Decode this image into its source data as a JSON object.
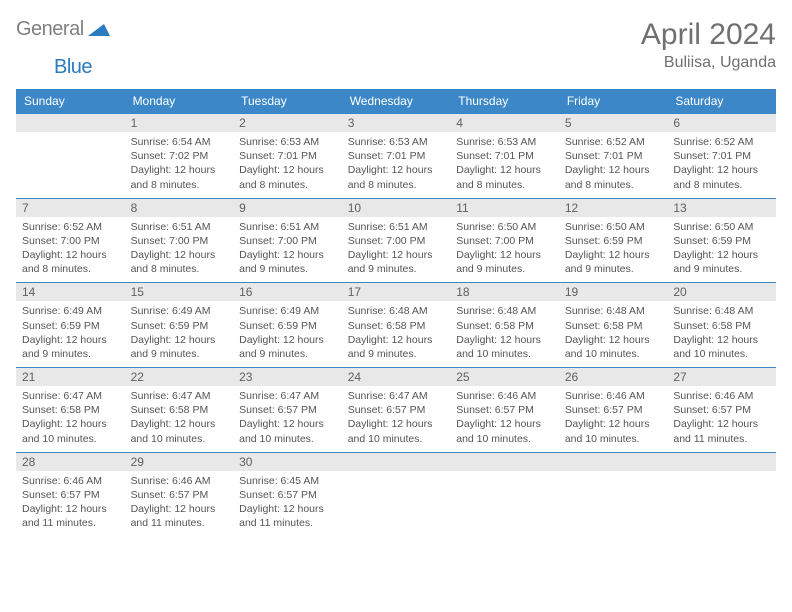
{
  "brand": {
    "name1": "General",
    "name2": "Blue"
  },
  "title": "April 2024",
  "location": "Buliisa, Uganda",
  "colors": {
    "header_bg": "#3b87c8",
    "header_fg": "#ffffff",
    "daynum_bg": "#e8e8e8",
    "text": "#555555",
    "title": "#707070",
    "border": "#3b87c8"
  },
  "weekdays": [
    "Sunday",
    "Monday",
    "Tuesday",
    "Wednesday",
    "Thursday",
    "Friday",
    "Saturday"
  ],
  "rows": [
    [
      {
        "n": "",
        "sr": "",
        "ss": "",
        "dl": ""
      },
      {
        "n": "1",
        "sr": "Sunrise: 6:54 AM",
        "ss": "Sunset: 7:02 PM",
        "dl": "Daylight: 12 hours and 8 minutes."
      },
      {
        "n": "2",
        "sr": "Sunrise: 6:53 AM",
        "ss": "Sunset: 7:01 PM",
        "dl": "Daylight: 12 hours and 8 minutes."
      },
      {
        "n": "3",
        "sr": "Sunrise: 6:53 AM",
        "ss": "Sunset: 7:01 PM",
        "dl": "Daylight: 12 hours and 8 minutes."
      },
      {
        "n": "4",
        "sr": "Sunrise: 6:53 AM",
        "ss": "Sunset: 7:01 PM",
        "dl": "Daylight: 12 hours and 8 minutes."
      },
      {
        "n": "5",
        "sr": "Sunrise: 6:52 AM",
        "ss": "Sunset: 7:01 PM",
        "dl": "Daylight: 12 hours and 8 minutes."
      },
      {
        "n": "6",
        "sr": "Sunrise: 6:52 AM",
        "ss": "Sunset: 7:01 PM",
        "dl": "Daylight: 12 hours and 8 minutes."
      }
    ],
    [
      {
        "n": "7",
        "sr": "Sunrise: 6:52 AM",
        "ss": "Sunset: 7:00 PM",
        "dl": "Daylight: 12 hours and 8 minutes."
      },
      {
        "n": "8",
        "sr": "Sunrise: 6:51 AM",
        "ss": "Sunset: 7:00 PM",
        "dl": "Daylight: 12 hours and 8 minutes."
      },
      {
        "n": "9",
        "sr": "Sunrise: 6:51 AM",
        "ss": "Sunset: 7:00 PM",
        "dl": "Daylight: 12 hours and 9 minutes."
      },
      {
        "n": "10",
        "sr": "Sunrise: 6:51 AM",
        "ss": "Sunset: 7:00 PM",
        "dl": "Daylight: 12 hours and 9 minutes."
      },
      {
        "n": "11",
        "sr": "Sunrise: 6:50 AM",
        "ss": "Sunset: 7:00 PM",
        "dl": "Daylight: 12 hours and 9 minutes."
      },
      {
        "n": "12",
        "sr": "Sunrise: 6:50 AM",
        "ss": "Sunset: 6:59 PM",
        "dl": "Daylight: 12 hours and 9 minutes."
      },
      {
        "n": "13",
        "sr": "Sunrise: 6:50 AM",
        "ss": "Sunset: 6:59 PM",
        "dl": "Daylight: 12 hours and 9 minutes."
      }
    ],
    [
      {
        "n": "14",
        "sr": "Sunrise: 6:49 AM",
        "ss": "Sunset: 6:59 PM",
        "dl": "Daylight: 12 hours and 9 minutes."
      },
      {
        "n": "15",
        "sr": "Sunrise: 6:49 AM",
        "ss": "Sunset: 6:59 PM",
        "dl": "Daylight: 12 hours and 9 minutes."
      },
      {
        "n": "16",
        "sr": "Sunrise: 6:49 AM",
        "ss": "Sunset: 6:59 PM",
        "dl": "Daylight: 12 hours and 9 minutes."
      },
      {
        "n": "17",
        "sr": "Sunrise: 6:48 AM",
        "ss": "Sunset: 6:58 PM",
        "dl": "Daylight: 12 hours and 9 minutes."
      },
      {
        "n": "18",
        "sr": "Sunrise: 6:48 AM",
        "ss": "Sunset: 6:58 PM",
        "dl": "Daylight: 12 hours and 10 minutes."
      },
      {
        "n": "19",
        "sr": "Sunrise: 6:48 AM",
        "ss": "Sunset: 6:58 PM",
        "dl": "Daylight: 12 hours and 10 minutes."
      },
      {
        "n": "20",
        "sr": "Sunrise: 6:48 AM",
        "ss": "Sunset: 6:58 PM",
        "dl": "Daylight: 12 hours and 10 minutes."
      }
    ],
    [
      {
        "n": "21",
        "sr": "Sunrise: 6:47 AM",
        "ss": "Sunset: 6:58 PM",
        "dl": "Daylight: 12 hours and 10 minutes."
      },
      {
        "n": "22",
        "sr": "Sunrise: 6:47 AM",
        "ss": "Sunset: 6:58 PM",
        "dl": "Daylight: 12 hours and 10 minutes."
      },
      {
        "n": "23",
        "sr": "Sunrise: 6:47 AM",
        "ss": "Sunset: 6:57 PM",
        "dl": "Daylight: 12 hours and 10 minutes."
      },
      {
        "n": "24",
        "sr": "Sunrise: 6:47 AM",
        "ss": "Sunset: 6:57 PM",
        "dl": "Daylight: 12 hours and 10 minutes."
      },
      {
        "n": "25",
        "sr": "Sunrise: 6:46 AM",
        "ss": "Sunset: 6:57 PM",
        "dl": "Daylight: 12 hours and 10 minutes."
      },
      {
        "n": "26",
        "sr": "Sunrise: 6:46 AM",
        "ss": "Sunset: 6:57 PM",
        "dl": "Daylight: 12 hours and 10 minutes."
      },
      {
        "n": "27",
        "sr": "Sunrise: 6:46 AM",
        "ss": "Sunset: 6:57 PM",
        "dl": "Daylight: 12 hours and 11 minutes."
      }
    ],
    [
      {
        "n": "28",
        "sr": "Sunrise: 6:46 AM",
        "ss": "Sunset: 6:57 PM",
        "dl": "Daylight: 12 hours and 11 minutes."
      },
      {
        "n": "29",
        "sr": "Sunrise: 6:46 AM",
        "ss": "Sunset: 6:57 PM",
        "dl": "Daylight: 12 hours and 11 minutes."
      },
      {
        "n": "30",
        "sr": "Sunrise: 6:45 AM",
        "ss": "Sunset: 6:57 PM",
        "dl": "Daylight: 12 hours and 11 minutes."
      },
      {
        "n": "",
        "sr": "",
        "ss": "",
        "dl": ""
      },
      {
        "n": "",
        "sr": "",
        "ss": "",
        "dl": ""
      },
      {
        "n": "",
        "sr": "",
        "ss": "",
        "dl": ""
      },
      {
        "n": "",
        "sr": "",
        "ss": "",
        "dl": ""
      }
    ]
  ]
}
